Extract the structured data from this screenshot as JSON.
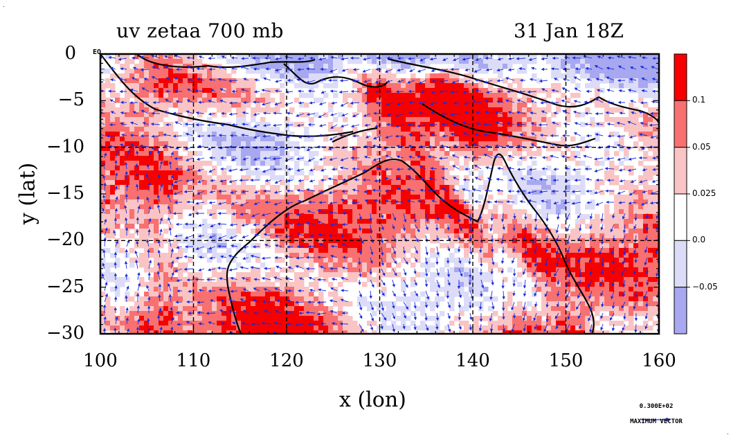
{
  "map": {
    "title": "uv zetaa 700 mb",
    "date": "31 Jan 18Z",
    "xlabel": "x (lon)",
    "ylabel": "y (lat)",
    "equator_marker": "EQ",
    "lon_range": [
      100,
      160
    ],
    "lat_range": [
      -30,
      0
    ],
    "x_ticks": [
      "100",
      "110",
      "120",
      "130",
      "140",
      "150",
      "160"
    ],
    "y_ticks": [
      "0",
      "−5",
      "−10",
      "−15",
      "−20",
      "−25",
      "−30"
    ],
    "grid_lines": "dashed every 10 degrees",
    "colors": {
      "strong_pos": "#f70000",
      "mid_pos": "#f87070",
      "weak_pos": "#fac4c4",
      "neutral": "#ffffff",
      "weak_neg": "#dcdcf8",
      "strong_neg": "#a8a8f0",
      "vectors": "#1a2cd8",
      "coast": "#000000"
    }
  },
  "colorbar": {
    "labels": [
      "0.1",
      "0.05",
      "0.025",
      "0.0",
      "−0.05"
    ]
  },
  "legend_vector": {
    "value": "0.300E+02",
    "label": "MAXIMUM VECTOR"
  }
}
